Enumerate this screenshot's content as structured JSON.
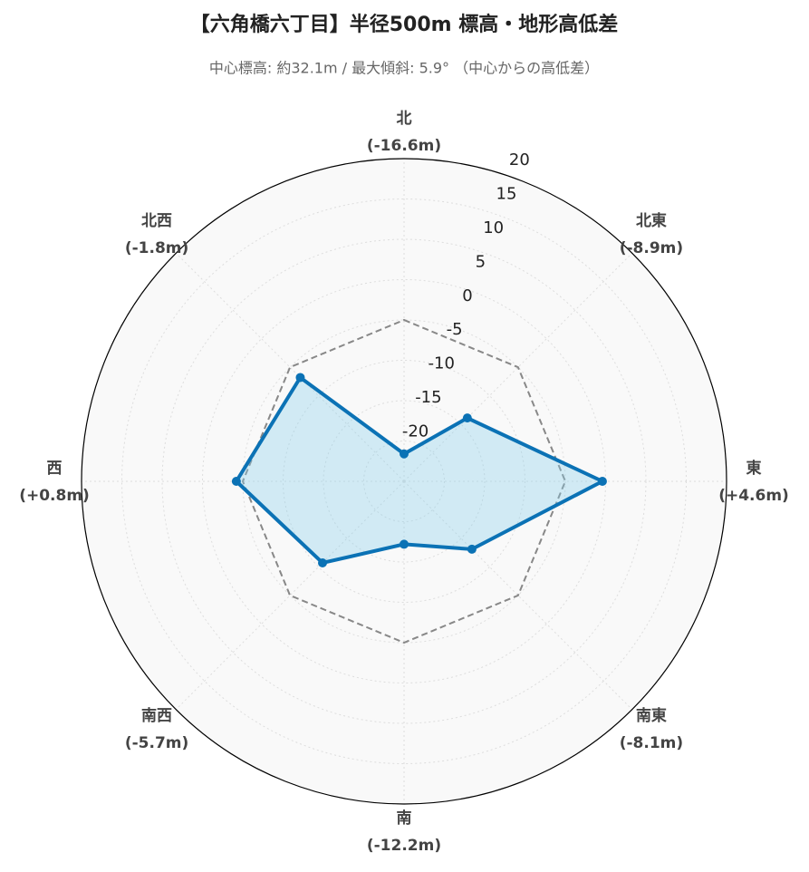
{
  "chart_data": {
    "type": "radar",
    "title": "【六角橋六丁目】半径500m 標高・地形高低差",
    "subtitle": "中心標高: 約32.1m / 最大傾斜: 5.9° （中心からの高低差）",
    "categories": [
      "北",
      "北東",
      "東",
      "南東",
      "南",
      "南西",
      "西",
      "北西"
    ],
    "value_labels": [
      "(-16.6m)",
      "(-8.9m)",
      "(+4.6m)",
      "(-8.1m)",
      "(-12.2m)",
      "(-5.7m)",
      "(+0.8m)",
      "(-1.8m)"
    ],
    "series": [
      {
        "color": "#888888",
        "dash": true,
        "fill": false,
        "values": [
          0,
          0,
          0,
          0,
          0,
          0,
          0,
          0
        ]
      },
      {
        "color": "#0b72b5",
        "dash": false,
        "fill": true,
        "values": [
          -16.6,
          -8.9,
          4.6,
          -8.1,
          -12.2,
          -5.7,
          0.8,
          -1.8
        ]
      }
    ],
    "ylim": [
      -20,
      20
    ],
    "yticks": [
      -20,
      -15,
      -10,
      -5,
      0,
      5,
      10,
      15,
      20
    ],
    "grid": true
  }
}
